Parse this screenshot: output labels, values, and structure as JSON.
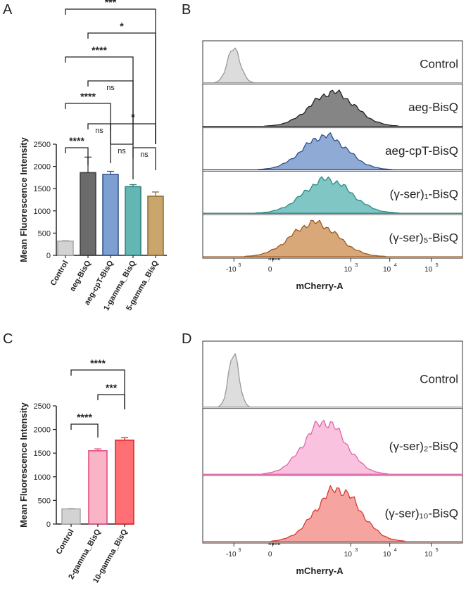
{
  "panels": {
    "A": "A",
    "B": "B",
    "C": "C",
    "D": "D"
  },
  "chart_data": [
    {
      "panel": "A",
      "type": "bar",
      "ylabel": "Mean Fluorescence Intensity",
      "ylim": [
        0,
        2500
      ],
      "yticks": [
        0,
        500,
        1000,
        1500,
        2000,
        2500
      ],
      "categories": [
        "Control",
        "aeg-BisQ",
        "aeg-cpT-BisQ",
        "1-gamma_BisQ",
        "5-gamma_BisQ"
      ],
      "values": [
        320,
        1860,
        1820,
        1545,
        1330
      ],
      "errors": [
        12,
        350,
        70,
        45,
        95
      ],
      "colors": [
        "#d3d3d3",
        "#6b6b6b",
        "#7d9fd1",
        "#63b6b3",
        "#c9a66b"
      ],
      "edges": [
        "#a6a6a6",
        "#3a3a3a",
        "#2f4f8a",
        "#2b7d7a",
        "#8e6a32"
      ],
      "comparisons": [
        {
          "a": 0,
          "b": 4,
          "label": "***"
        },
        {
          "a": 1,
          "b": 4,
          "label": "*"
        },
        {
          "a": 0,
          "b": 3,
          "label": "****"
        },
        {
          "a": 1,
          "b": 3,
          "label": "ns"
        },
        {
          "a": 0,
          "b": 2,
          "label": "****"
        },
        {
          "a": 1,
          "b": 2,
          "label": "ns"
        },
        {
          "a": 2,
          "b": 4,
          "label": "*"
        },
        {
          "a": 0,
          "b": 1,
          "label": "****"
        },
        {
          "a": 2,
          "b": 3,
          "label": "ns"
        },
        {
          "a": 3,
          "b": 4,
          "label": "ns"
        }
      ]
    },
    {
      "panel": "C",
      "type": "bar",
      "ylabel": "Mean Fluorescence Intensity",
      "ylim": [
        0,
        2500
      ],
      "yticks": [
        0,
        500,
        1000,
        1500,
        2000,
        2500
      ],
      "categories": [
        "Control",
        "2-gamma_BisQ",
        "10-gamma_BisQ"
      ],
      "values": [
        320,
        1550,
        1775
      ],
      "errors": [
        10,
        40,
        50
      ],
      "colors": [
        "#d3d3d3",
        "#f9b4c6",
        "#ff6f73"
      ],
      "edges": [
        "#a6a6a6",
        "#e0457a",
        "#e02020"
      ],
      "comparisons": [
        {
          "a": 0,
          "b": 2,
          "label": "****"
        },
        {
          "a": 1,
          "b": 2,
          "label": "***"
        },
        {
          "a": 0,
          "b": 1,
          "label": "****"
        }
      ]
    },
    {
      "panel": "B",
      "type": "area",
      "xlabel": "mCherry-A",
      "xticks": [
        {
          "base": "-10",
          "exp": "3"
        },
        {
          "base": "0",
          "exp": ""
        },
        {
          "base": "10",
          "exp": "3"
        },
        {
          "base": "10",
          "exp": "4"
        },
        {
          "base": "10",
          "exp": "5"
        }
      ],
      "series": [
        {
          "name": "Control",
          "peak": 0.12,
          "width": 0.025,
          "fill": "#dcdcdc",
          "line": "#9a9a9a"
        },
        {
          "name": "aeg-BisQ",
          "peak": 0.5,
          "width": 0.085,
          "fill": "#858585",
          "line": "#222222"
        },
        {
          "name": "aeg-cpT-BisQ",
          "peak": 0.47,
          "width": 0.085,
          "fill": "#8faad4",
          "line": "#2e5189"
        },
        {
          "name": "(γ-ser)₁-BisQ",
          "peak": 0.48,
          "width": 0.09,
          "fill": "#7fc6c4",
          "line": "#2b8a86"
        },
        {
          "name": "(γ-ser)₅-BisQ",
          "peak": 0.43,
          "width": 0.09,
          "fill": "#d9a878",
          "line": "#9a5a20"
        }
      ]
    },
    {
      "panel": "D",
      "type": "area",
      "xlabel": "mCherry-A",
      "xticks": [
        {
          "base": "-10",
          "exp": "3"
        },
        {
          "base": "0",
          "exp": ""
        },
        {
          "base": "10",
          "exp": "3"
        },
        {
          "base": "10",
          "exp": "4"
        },
        {
          "base": "10",
          "exp": "5"
        }
      ],
      "series": [
        {
          "name": "Control",
          "peak": 0.12,
          "width": 0.02,
          "fill": "#dddddd",
          "line": "#9a9a9a"
        },
        {
          "name": "(γ-ser)₂-BisQ",
          "peak": 0.47,
          "width": 0.08,
          "fill": "#f9c3e0",
          "line": "#e066a8"
        },
        {
          "name": "(γ-ser)₁₀-BisQ",
          "peak": 0.52,
          "width": 0.085,
          "fill": "#f5a4a0",
          "line": "#d93a34"
        }
      ]
    }
  ]
}
